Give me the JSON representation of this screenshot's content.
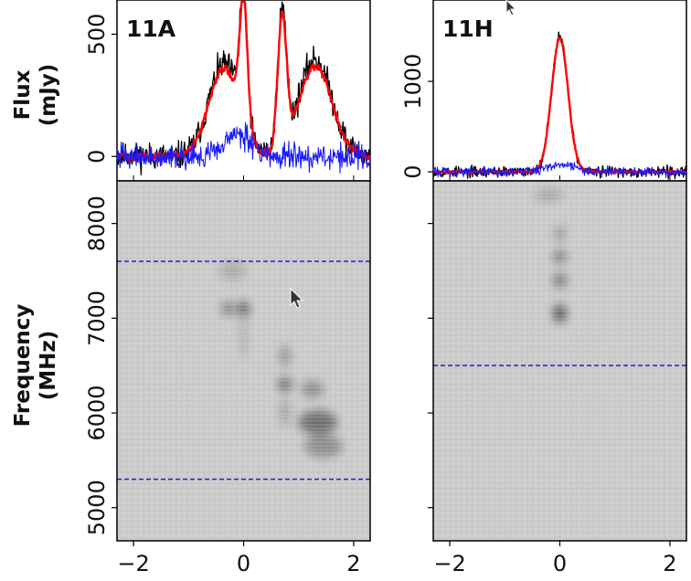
{
  "chart_data": [
    {
      "type": "line",
      "panel": "11A",
      "ylabel_top": "Flux",
      "ylabel_bottom": "(mJy)",
      "yticks": [
        {
          "value": 0,
          "label": "0"
        },
        {
          "value": 500,
          "label": "500"
        }
      ],
      "xlim": [
        -2.3,
        2.3
      ],
      "ylim": [
        -100,
        640
      ],
      "series": [
        {
          "color": "#000000",
          "width": 1.3,
          "components": [
            {
              "center": -0.35,
              "width": 0.28,
              "amp": 380
            },
            {
              "center": 0.0,
              "width": 0.07,
              "amp": 520
            },
            {
              "center": 0.7,
              "width": 0.08,
              "amp": 560
            },
            {
              "center": 1.3,
              "width": 0.3,
              "amp": 400
            }
          ],
          "noise": 55
        },
        {
          "color": "#ff0000",
          "width": 2.4,
          "components": [
            {
              "center": -0.35,
              "width": 0.28,
              "amp": 360
            },
            {
              "center": 0.0,
              "width": 0.07,
              "amp": 500
            },
            {
              "center": 0.7,
              "width": 0.08,
              "amp": 540
            },
            {
              "center": 1.3,
              "width": 0.3,
              "amp": 370
            }
          ],
          "noise": 15
        },
        {
          "color": "#1a1aff",
          "width": 1.1,
          "components": [
            {
              "center": -0.1,
              "width": 0.25,
              "amp": 90
            }
          ],
          "noise": 50
        }
      ]
    },
    {
      "type": "line",
      "panel": "11H",
      "yticks": [
        {
          "value": 0,
          "label": "0"
        },
        {
          "value": 1000,
          "label": "1000"
        }
      ],
      "xlim": [
        -2.3,
        2.3
      ],
      "ylim": [
        -100,
        1900
      ],
      "series": [
        {
          "color": "#000000",
          "width": 1.3,
          "components": [
            {
              "center": 0.0,
              "width": 0.15,
              "amp": 1500
            }
          ],
          "noise": 60
        },
        {
          "color": "#ff0000",
          "width": 2.4,
          "components": [
            {
              "center": 0.0,
              "width": 0.15,
              "amp": 1480
            }
          ],
          "noise": 15
        },
        {
          "color": "#1a1aff",
          "width": 1.1,
          "components": [
            {
              "center": 0.0,
              "width": 0.25,
              "amp": 80
            }
          ],
          "noise": 50
        }
      ]
    },
    {
      "type": "heatmap",
      "panel": "11A-dynamic-spectrum",
      "ylabel_top": "Frequency",
      "ylabel_bottom": "(MHz)",
      "xlim": [
        -2.3,
        2.3
      ],
      "ylim": [
        4650,
        8450
      ],
      "xticks": [
        {
          "value": -2,
          "label": "−2"
        },
        {
          "value": 0,
          "label": "0"
        },
        {
          "value": 2,
          "label": "2"
        }
      ],
      "yticks": [
        {
          "value": 5000,
          "label": "5000"
        },
        {
          "value": 6000,
          "label": "6000"
        },
        {
          "value": 7000,
          "label": "7000"
        },
        {
          "value": 8000,
          "label": "8000"
        }
      ],
      "dashed_lines_mhz": [
        7600,
        5300
      ],
      "blobs": [
        {
          "x": 0.0,
          "y": 7100,
          "w": 0.1,
          "h": 80,
          "opacity": 0.55
        },
        {
          "x": -0.28,
          "y": 7100,
          "w": 0.12,
          "h": 80,
          "opacity": 0.35
        },
        {
          "x": -0.2,
          "y": 7500,
          "w": 0.25,
          "h": 100,
          "opacity": 0.15
        },
        {
          "x": 0.0,
          "y": 6800,
          "w": 0.05,
          "h": 250,
          "opacity": 0.18
        },
        {
          "x": 0.75,
          "y": 6300,
          "w": 0.12,
          "h": 80,
          "opacity": 0.45
        },
        {
          "x": 0.75,
          "y": 6600,
          "w": 0.1,
          "h": 120,
          "opacity": 0.25
        },
        {
          "x": 0.75,
          "y": 6000,
          "w": 0.1,
          "h": 150,
          "opacity": 0.18
        },
        {
          "x": 1.25,
          "y": 6250,
          "w": 0.2,
          "h": 90,
          "opacity": 0.3
        },
        {
          "x": 1.35,
          "y": 5900,
          "w": 0.35,
          "h": 130,
          "opacity": 0.45
        },
        {
          "x": 1.45,
          "y": 5650,
          "w": 0.35,
          "h": 120,
          "opacity": 0.3
        }
      ]
    },
    {
      "type": "heatmap",
      "panel": "11H-dynamic-spectrum",
      "xlim": [
        -2.3,
        2.3
      ],
      "ylim": [
        4650,
        8450
      ],
      "xticks": [
        {
          "value": -2,
          "label": "−2"
        },
        {
          "value": 0,
          "label": "0"
        },
        {
          "value": 2,
          "label": "2"
        }
      ],
      "yticks": [
        {
          "value": 5000,
          "label": ""
        },
        {
          "value": 6000,
          "label": ""
        },
        {
          "value": 7000,
          "label": ""
        },
        {
          "value": 8000,
          "label": ""
        }
      ],
      "dashed_lines_mhz": [
        6500
      ],
      "blobs": [
        {
          "x": 0.0,
          "y": 7050,
          "w": 0.12,
          "h": 100,
          "opacity": 0.55
        },
        {
          "x": 0.0,
          "y": 7400,
          "w": 0.12,
          "h": 80,
          "opacity": 0.4
        },
        {
          "x": 0.0,
          "y": 7650,
          "w": 0.12,
          "h": 80,
          "opacity": 0.35
        },
        {
          "x": 0.0,
          "y": 7900,
          "w": 0.1,
          "h": 80,
          "opacity": 0.25
        },
        {
          "x": -0.2,
          "y": 8300,
          "w": 0.25,
          "h": 60,
          "opacity": 0.2
        }
      ]
    }
  ]
}
